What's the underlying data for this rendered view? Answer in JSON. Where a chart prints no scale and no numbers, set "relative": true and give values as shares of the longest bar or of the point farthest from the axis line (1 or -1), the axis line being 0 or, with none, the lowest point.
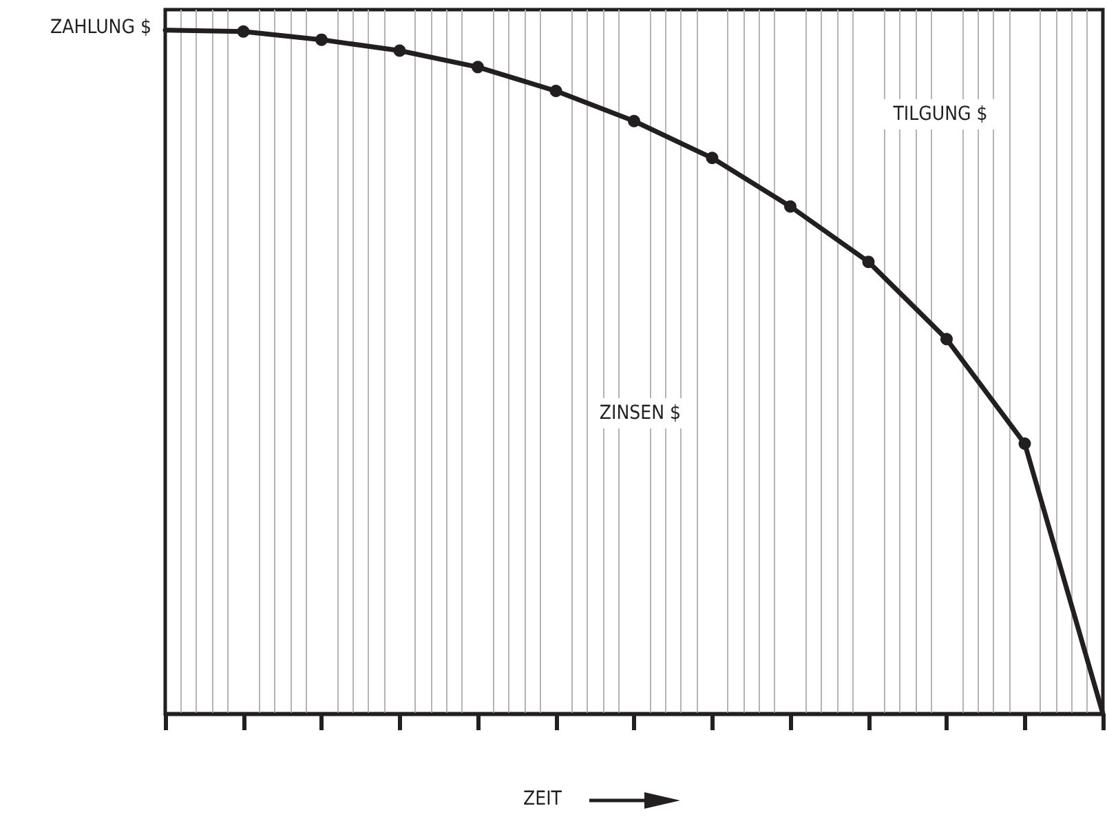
{
  "chart_data": {
    "type": "line",
    "relative": true,
    "xlabel": "ZEIT",
    "ylabel": "ZAHLUNG $",
    "categories": [
      null,
      null,
      null,
      null,
      null,
      null,
      null,
      null,
      null,
      null,
      null,
      null,
      null
    ],
    "grid": "x",
    "marker": "circle",
    "line_style": "solid",
    "annotations": [
      "TILGUNG $",
      "ZINSEN $"
    ],
    "series": [
      {
        "color": "#231f20",
        "values": [
          1,
          0.998,
          0.986,
          0.97,
          0.946,
          0.911,
          0.867,
          0.813,
          0.742,
          0.661,
          0.548,
          0.395,
          0
        ]
      }
    ]
  }
}
